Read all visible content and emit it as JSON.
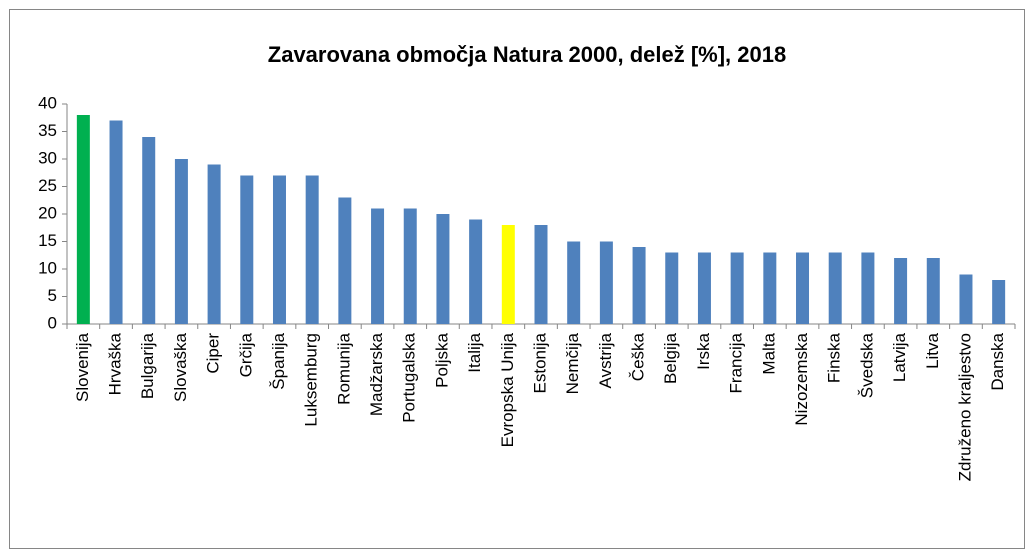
{
  "chart_data": {
    "type": "bar",
    "title": "Zavarovana območja Natura 2000, delež [%], 2018",
    "categories": [
      "Slovenija",
      "Hrvaška",
      "Bulgarija",
      "Slovaška",
      "Ciper",
      "Grčija",
      "Španija",
      "Luksemburg",
      "Romunija",
      "Madžarska",
      "Portugalska",
      "Poljska",
      "Italija",
      "Evropska Unija",
      "Estonija",
      "Nemčija",
      "Avstrija",
      "Češka",
      "Belgija",
      "Irska",
      "Francija",
      "Malta",
      "Nizozemska",
      "Finska",
      "Švedska",
      "Latvija",
      "Litva",
      "Združeno kraljestvo",
      "Danska"
    ],
    "values": [
      38,
      37,
      34,
      30,
      29,
      27,
      27,
      27,
      23,
      21,
      21,
      20,
      19,
      18,
      18,
      15,
      15,
      14,
      13,
      13,
      13,
      13,
      13,
      13,
      13,
      12,
      12,
      9,
      8
    ],
    "colors": [
      "#00b050",
      "#4f81bd",
      "#4f81bd",
      "#4f81bd",
      "#4f81bd",
      "#4f81bd",
      "#4f81bd",
      "#4f81bd",
      "#4f81bd",
      "#4f81bd",
      "#4f81bd",
      "#4f81bd",
      "#4f81bd",
      "#ffff00",
      "#4f81bd",
      "#4f81bd",
      "#4f81bd",
      "#4f81bd",
      "#4f81bd",
      "#4f81bd",
      "#4f81bd",
      "#4f81bd",
      "#4f81bd",
      "#4f81bd",
      "#4f81bd",
      "#4f81bd",
      "#4f81bd",
      "#4f81bd",
      "#4f81bd"
    ],
    "ylim": [
      0,
      40
    ],
    "yticks": [
      0,
      5,
      10,
      15,
      20,
      25,
      30,
      35,
      40
    ],
    "grid": false
  }
}
